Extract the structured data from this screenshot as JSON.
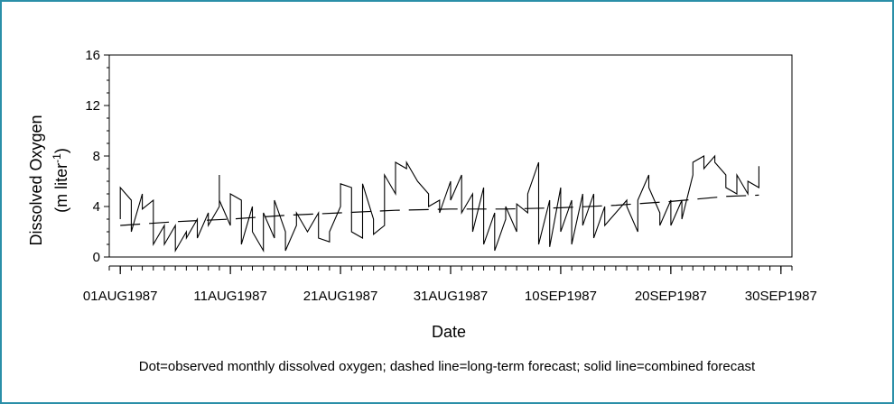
{
  "chart_data": {
    "type": "line",
    "title": "",
    "xlabel": "Date",
    "ylabel_line1": "Dissolved Oxygen",
    "ylabel_line2_pre": "(m liter",
    "ylabel_sup": "-1",
    "ylabel_line2_post": ")",
    "ylim": [
      0,
      16
    ],
    "yticks": [
      0,
      4,
      8,
      12,
      16
    ],
    "xrange": [
      "1987-07-31",
      "1987-10-01"
    ],
    "xticks": [
      {
        "date": "1987-08-01",
        "label": "01AUG1987"
      },
      {
        "date": "1987-08-11",
        "label": "11AUG1987"
      },
      {
        "date": "1987-08-21",
        "label": "21AUG1987"
      },
      {
        "date": "1987-08-31",
        "label": "31AUG1987"
      },
      {
        "date": "1987-09-10",
        "label": "10SEP1987"
      },
      {
        "date": "1987-09-20",
        "label": "20SEP1987"
      },
      {
        "date": "1987-09-30",
        "label": "30SEP1987"
      }
    ],
    "series": [
      {
        "style": "solid",
        "points": [
          [
            "1987-08-01",
            3.0
          ],
          [
            "1987-08-01",
            5.5
          ],
          [
            "1987-08-02",
            4.5
          ],
          [
            "1987-08-02",
            2.0
          ],
          [
            "1987-08-03",
            5.0
          ],
          [
            "1987-08-03",
            3.8
          ],
          [
            "1987-08-04",
            4.5
          ],
          [
            "1987-08-04",
            1.0
          ],
          [
            "1987-08-05",
            2.5
          ],
          [
            "1987-08-05",
            1.0
          ],
          [
            "1987-08-06",
            2.5
          ],
          [
            "1987-08-06",
            0.5
          ],
          [
            "1987-08-07",
            2.0
          ],
          [
            "1987-08-07",
            1.5
          ],
          [
            "1987-08-08",
            3.0
          ],
          [
            "1987-08-08",
            1.5
          ],
          [
            "1987-08-09",
            3.5
          ],
          [
            "1987-08-09",
            2.5
          ],
          [
            "1987-08-10",
            4.0
          ],
          [
            "1987-08-10",
            6.5
          ],
          [
            "1987-08-10",
            4.5
          ],
          [
            "1987-08-11",
            2.5
          ],
          [
            "1987-08-11",
            5.0
          ],
          [
            "1987-08-12",
            4.5
          ],
          [
            "1987-08-12",
            1.0
          ],
          [
            "1987-08-13",
            4.0
          ],
          [
            "1987-08-13",
            2.0
          ],
          [
            "1987-08-14",
            0.5
          ],
          [
            "1987-08-14",
            3.5
          ],
          [
            "1987-08-15",
            1.5
          ],
          [
            "1987-08-15",
            4.5
          ],
          [
            "1987-08-16",
            2.0
          ],
          [
            "1987-08-16",
            0.5
          ],
          [
            "1987-08-17",
            2.5
          ],
          [
            "1987-08-17",
            3.5
          ],
          [
            "1987-08-18",
            2.0
          ],
          [
            "1987-08-19",
            3.5
          ],
          [
            "1987-08-19",
            1.5
          ],
          [
            "1987-08-20",
            1.2
          ],
          [
            "1987-08-20",
            2.0
          ],
          [
            "1987-08-21",
            4.0
          ],
          [
            "1987-08-21",
            5.8
          ],
          [
            "1987-08-22",
            5.5
          ],
          [
            "1987-08-22",
            2.0
          ],
          [
            "1987-08-23",
            1.5
          ],
          [
            "1987-08-23",
            5.8
          ],
          [
            "1987-08-24",
            3.0
          ],
          [
            "1987-08-24",
            1.8
          ],
          [
            "1987-08-25",
            2.5
          ],
          [
            "1987-08-25",
            6.5
          ],
          [
            "1987-08-26",
            5.0
          ],
          [
            "1987-08-26",
            7.5
          ],
          [
            "1987-08-27",
            7.0
          ],
          [
            "1987-08-27",
            7.5
          ],
          [
            "1987-08-28",
            6.0
          ],
          [
            "1987-08-29",
            5.0
          ],
          [
            "1987-08-29",
            4.0
          ],
          [
            "1987-08-30",
            4.5
          ],
          [
            "1987-08-30",
            3.5
          ],
          [
            "1987-08-31",
            6.0
          ],
          [
            "1987-08-31",
            4.5
          ],
          [
            "1987-09-01",
            6.5
          ],
          [
            "1987-09-01",
            3.5
          ],
          [
            "1987-09-02",
            5.0
          ],
          [
            "1987-09-02",
            2.0
          ],
          [
            "1987-09-03",
            5.5
          ],
          [
            "1987-09-03",
            1.0
          ],
          [
            "1987-09-04",
            3.5
          ],
          [
            "1987-09-04",
            0.5
          ],
          [
            "1987-09-05",
            3.0
          ],
          [
            "1987-09-05",
            4.0
          ],
          [
            "1987-09-06",
            2.0
          ],
          [
            "1987-09-06",
            4.2
          ],
          [
            "1987-09-07",
            3.5
          ],
          [
            "1987-09-07",
            5.0
          ],
          [
            "1987-09-08",
            7.5
          ],
          [
            "1987-09-08",
            1.0
          ],
          [
            "1987-09-09",
            4.5
          ],
          [
            "1987-09-09",
            0.8
          ],
          [
            "1987-09-10",
            5.5
          ],
          [
            "1987-09-10",
            2.0
          ],
          [
            "1987-09-11",
            4.5
          ],
          [
            "1987-09-11",
            1.0
          ],
          [
            "1987-09-12",
            5.0
          ],
          [
            "1987-09-12",
            2.5
          ],
          [
            "1987-09-13",
            5.0
          ],
          [
            "1987-09-13",
            1.5
          ],
          [
            "1987-09-14",
            4.0
          ],
          [
            "1987-09-14",
            2.5
          ],
          [
            "1987-09-15",
            3.5
          ],
          [
            "1987-09-16",
            4.5
          ],
          [
            "1987-09-16",
            4.0
          ],
          [
            "1987-09-17",
            2.0
          ],
          [
            "1987-09-17",
            4.5
          ],
          [
            "1987-09-18",
            6.5
          ],
          [
            "1987-09-18",
            5.5
          ],
          [
            "1987-09-19",
            3.5
          ],
          [
            "1987-09-19",
            2.5
          ],
          [
            "1987-09-20",
            4.5
          ],
          [
            "1987-09-20",
            2.5
          ],
          [
            "1987-09-21",
            4.5
          ],
          [
            "1987-09-21",
            3.0
          ],
          [
            "1987-09-22",
            6.5
          ],
          [
            "1987-09-22",
            7.5
          ],
          [
            "1987-09-23",
            8.0
          ],
          [
            "1987-09-23",
            7.0
          ],
          [
            "1987-09-24",
            8.0
          ],
          [
            "1987-09-24",
            7.5
          ],
          [
            "1987-09-25",
            6.5
          ],
          [
            "1987-09-25",
            5.5
          ],
          [
            "1987-09-26",
            5.0
          ],
          [
            "1987-09-26",
            6.5
          ],
          [
            "1987-09-27",
            5.0
          ],
          [
            "1987-09-27",
            6.0
          ],
          [
            "1987-09-28",
            5.5
          ],
          [
            "1987-09-28",
            7.2
          ]
        ]
      },
      {
        "style": "dashed",
        "points": [
          [
            "1987-08-01",
            2.5
          ],
          [
            "1987-08-06",
            2.8
          ],
          [
            "1987-08-11",
            3.0
          ],
          [
            "1987-08-16",
            3.3
          ],
          [
            "1987-08-21",
            3.5
          ],
          [
            "1987-08-26",
            3.7
          ],
          [
            "1987-08-31",
            3.8
          ],
          [
            "1987-09-05",
            3.8
          ],
          [
            "1987-09-10",
            3.9
          ],
          [
            "1987-09-15",
            4.1
          ],
          [
            "1987-09-20",
            4.4
          ],
          [
            "1987-09-25",
            4.8
          ],
          [
            "1987-09-28",
            4.9
          ]
        ]
      }
    ],
    "caption": "Dot=observed monthly dissolved oxygen; dashed line=long-term forecast; solid line=combined forecast"
  }
}
